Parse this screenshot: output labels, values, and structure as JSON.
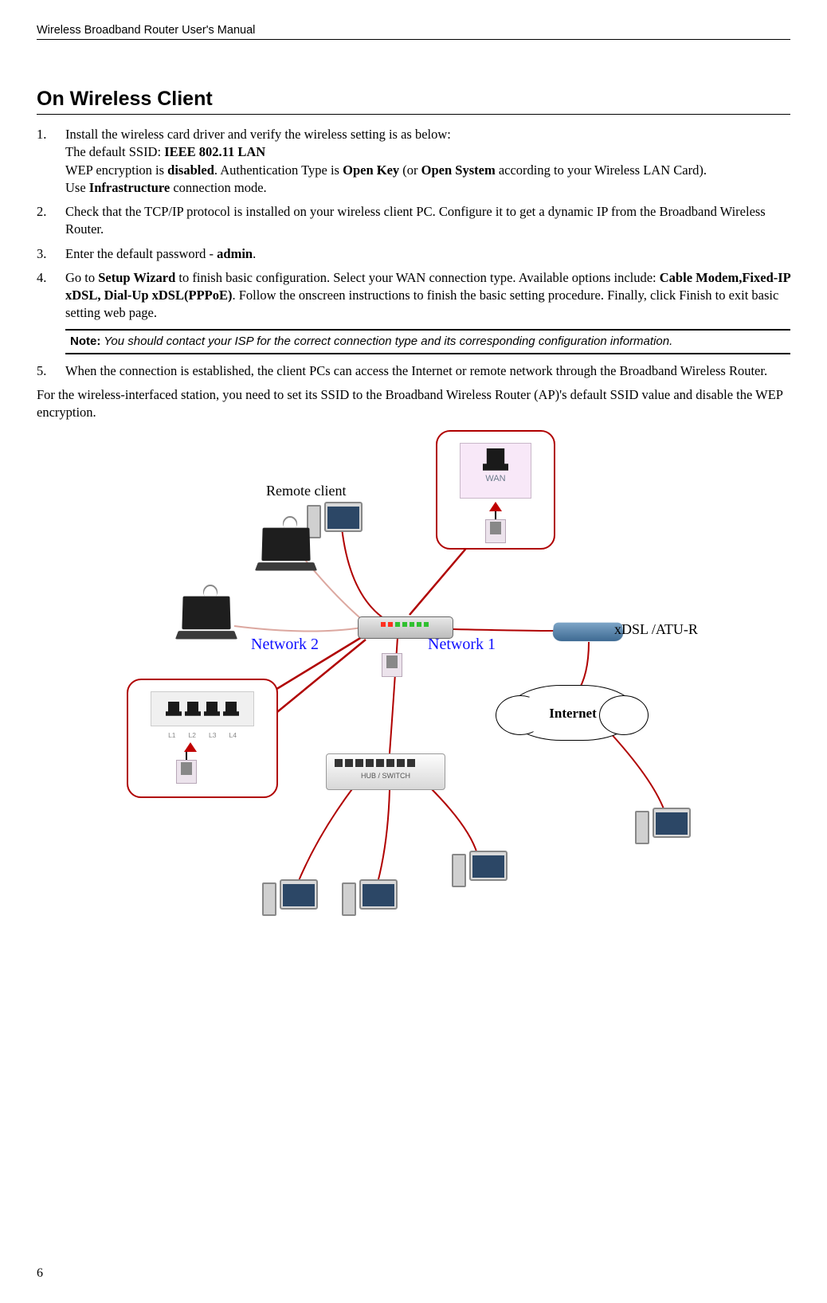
{
  "header": "Wireless Broadband Router User's Manual",
  "section_title": "On Wireless Client",
  "steps": [
    {
      "pre": "Install the wireless card driver and verify the wireless setting is as below:",
      "line2a": "The default SSID: ",
      "line2b": "IEEE 802.11 LAN",
      "line3a": "WEP encryption is ",
      "line3b": "disabled",
      "line3c": ". Authentication Type is ",
      "line3d": "Open Key",
      "line3e": " (or ",
      "line3f": "Open System",
      "line3g": " according to your Wireless LAN Card).",
      "line4a": "Use ",
      "line4b": "Infrastructure",
      "line4c": " connection mode."
    },
    {
      "text": "Check that the TCP/IP protocol is installed on your wireless client PC. Configure it to get a dynamic IP from the Broadband Wireless Router."
    },
    {
      "pre": "Enter the default password - ",
      "bold": "admin",
      "post": "."
    },
    {
      "a": "Go to ",
      "b": "Setup Wizard",
      "c": " to finish basic configuration. Select your WAN connection type. Available options include: ",
      "d": "Cable Modem",
      "e": ",",
      "f": "Fixed-IP xDSL, Dial-Up xDSL(PPPoE)",
      "g": ". Follow the onscreen instructions to finish the basic setting procedure. Finally, click Finish to exit basic setting web page."
    },
    {
      "text": "When the connection is established, the client PCs can access the Internet or remote network through the Broadband Wireless Router."
    }
  ],
  "note": {
    "label": "Note:",
    "text": " You should contact your ISP for the correct connection type and its corresponding configuration information."
  },
  "para_after": "For the wireless-interfaced station, you need to set its SSID to the Broadband Wireless Router (AP)'s default SSID value and disable the WEP encryption.",
  "diagram": {
    "remote_client": "Remote client",
    "network1": "Network 1",
    "network2": "Network 2",
    "modem": "xDSL /ATU-R",
    "internet": "Internet",
    "wan_label": "WAN",
    "switch_label": "HUB / SWITCH",
    "lan_ports": [
      "L1",
      "L2",
      "L3",
      "L4"
    ],
    "colors": {
      "line_red": "#b00000",
      "line_light": "#dca8a0",
      "blue": "#1010ff"
    },
    "led_colors": [
      "#ff3020",
      "#ff3020",
      "#30c030",
      "#30c030",
      "#30c030",
      "#30c030",
      "#30c030"
    ]
  },
  "page_number": "6"
}
